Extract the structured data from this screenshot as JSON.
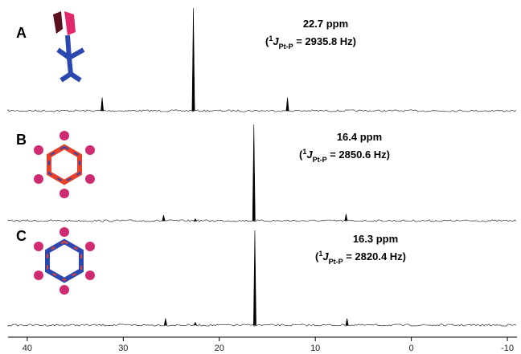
{
  "chart_data": [
    {
      "type": "spectrum",
      "label": "A",
      "x": [
        32.2,
        22.7,
        12.9
      ],
      "values": [
        13,
        100,
        13
      ],
      "annotation": {
        "label": "22.7 ppm",
        "open": "(",
        "sup": "1",
        "symbol": "J",
        "sub": "Pt-P",
        "rest": " = 2935.8 Hz)"
      },
      "xlim": [
        42,
        -11
      ],
      "ylim": [
        0,
        100
      ],
      "color": "#000000"
    },
    {
      "type": "spectrum",
      "label": "B",
      "x": [
        25.8,
        22.5,
        16.4,
        6.8
      ],
      "values": [
        6,
        2,
        100,
        7
      ],
      "annotation": {
        "label": "16.4 ppm",
        "open": "(",
        "sup": "1",
        "symbol": "J",
        "sub": "Pt-P",
        "rest": " = 2850.6 Hz)"
      },
      "xlim": [
        42,
        -11
      ],
      "ylim": [
        0,
        100
      ],
      "color": "#000000"
    },
    {
      "type": "spectrum",
      "label": "C",
      "x": [
        25.6,
        22.5,
        16.3,
        6.7
      ],
      "values": [
        7,
        3,
        100,
        7
      ],
      "annotation": {
        "label": "16.3 ppm",
        "open": "(",
        "sup": "1",
        "symbol": "J",
        "sub": "Pt-P",
        "rest": " = 2820.4 Hz)"
      },
      "xlim": [
        42,
        -11
      ],
      "ylim": [
        0,
        100
      ],
      "color": "#000000",
      "xticks": [
        40,
        30,
        20,
        10,
        0,
        -10
      ]
    }
  ]
}
